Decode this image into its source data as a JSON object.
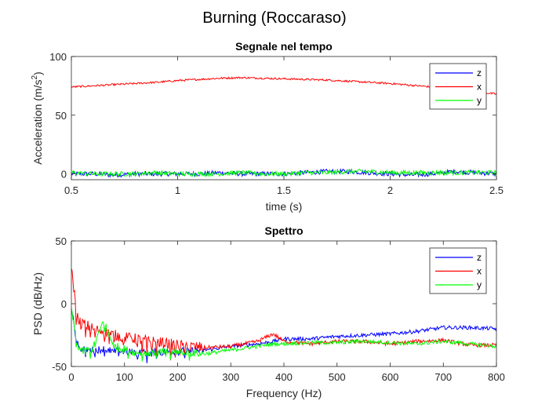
{
  "figure_title": "Burning (Roccaraso)",
  "colors": {
    "z": "#0000ff",
    "x": "#ff0000",
    "y": "#00ff00",
    "axis": "#262626"
  },
  "chart_data": [
    {
      "type": "line",
      "title": "Segnale nel tempo",
      "xlabel": "time (s)",
      "ylabel": "Acceleration (m/s",
      "ylabel_sup": "2",
      "ylabel_end": ")",
      "xlim": [
        0.5,
        2.5
      ],
      "ylim": [
        -5,
        100
      ],
      "xticks": [
        0.5,
        1,
        1.5,
        2,
        2.5
      ],
      "xtick_labels": [
        "0.5",
        "1",
        "1.5",
        "2",
        "2.5"
      ],
      "yticks": [
        0,
        50,
        100
      ],
      "ytick_labels": [
        "0",
        "50",
        "100"
      ],
      "grid": false,
      "legend_position": "top-right",
      "x": [
        0.5,
        0.6,
        0.7,
        0.8,
        0.9,
        1.0,
        1.1,
        1.2,
        1.3,
        1.4,
        1.5,
        1.6,
        1.7,
        1.8,
        1.9,
        2.0,
        2.1,
        2.2,
        2.3,
        2.4,
        2.5
      ],
      "series": [
        {
          "name": "z",
          "color": "#0000ff",
          "values": [
            0,
            0,
            -1,
            0,
            0,
            0,
            0,
            1,
            0,
            0,
            0,
            1,
            2,
            2,
            1,
            0,
            -1,
            0,
            2,
            1,
            0
          ]
        },
        {
          "name": "x",
          "color": "#ff0000",
          "values": [
            74,
            75,
            76,
            77,
            78,
            79.5,
            80.5,
            81.5,
            82,
            81.5,
            81,
            80.5,
            80,
            79,
            78,
            77,
            75.5,
            74,
            72,
            70,
            68
          ]
        },
        {
          "name": "y",
          "color": "#00ff00",
          "values": [
            1,
            0,
            0,
            0,
            1,
            0,
            0,
            0,
            1,
            0,
            0,
            1,
            1,
            2,
            2,
            1,
            1,
            1,
            1,
            1,
            1
          ]
        }
      ]
    },
    {
      "type": "line",
      "title": "Spettro",
      "xlabel": "Frequency (Hz)",
      "ylabel": "PSD (dB/Hz)",
      "xlim": [
        0,
        800
      ],
      "ylim": [
        -50,
        50
      ],
      "xticks": [
        0,
        100,
        200,
        300,
        400,
        500,
        600,
        700,
        800
      ],
      "xtick_labels": [
        "0",
        "100",
        "200",
        "300",
        "400",
        "500",
        "600",
        "700",
        "800"
      ],
      "yticks": [
        -50,
        0,
        50
      ],
      "ytick_labels": [
        "-50",
        "0",
        "50"
      ],
      "grid": false,
      "legend_position": "top-right",
      "x": [
        0,
        10,
        20,
        40,
        60,
        80,
        100,
        120,
        150,
        200,
        250,
        300,
        350,
        380,
        400,
        450,
        500,
        550,
        600,
        650,
        700,
        750,
        800
      ],
      "series": [
        {
          "name": "z",
          "color": "#0000ff",
          "values": [
            -5,
            -30,
            -36,
            -37,
            -36,
            -38,
            -38,
            -39,
            -39,
            -38,
            -37,
            -34,
            -32,
            -30,
            -28,
            -28,
            -26,
            -25,
            -24,
            -22,
            -19,
            -19,
            -20
          ]
        },
        {
          "name": "x",
          "color": "#ff0000",
          "values": [
            32,
            -10,
            -15,
            -20,
            -22,
            -25,
            -27,
            -28,
            -30,
            -33,
            -35,
            -34,
            -30,
            -24,
            -30,
            -32,
            -30,
            -30,
            -32,
            -30,
            -29,
            -33,
            -33
          ]
        },
        {
          "name": "y",
          "color": "#00ff00",
          "values": [
            -3,
            -32,
            -38,
            -36,
            -14,
            -33,
            -36,
            -39,
            -39,
            -38,
            -40,
            -37,
            -34,
            -32,
            -32,
            -31,
            -31,
            -30,
            -31,
            -32,
            -30,
            -32,
            -34
          ]
        }
      ]
    }
  ]
}
